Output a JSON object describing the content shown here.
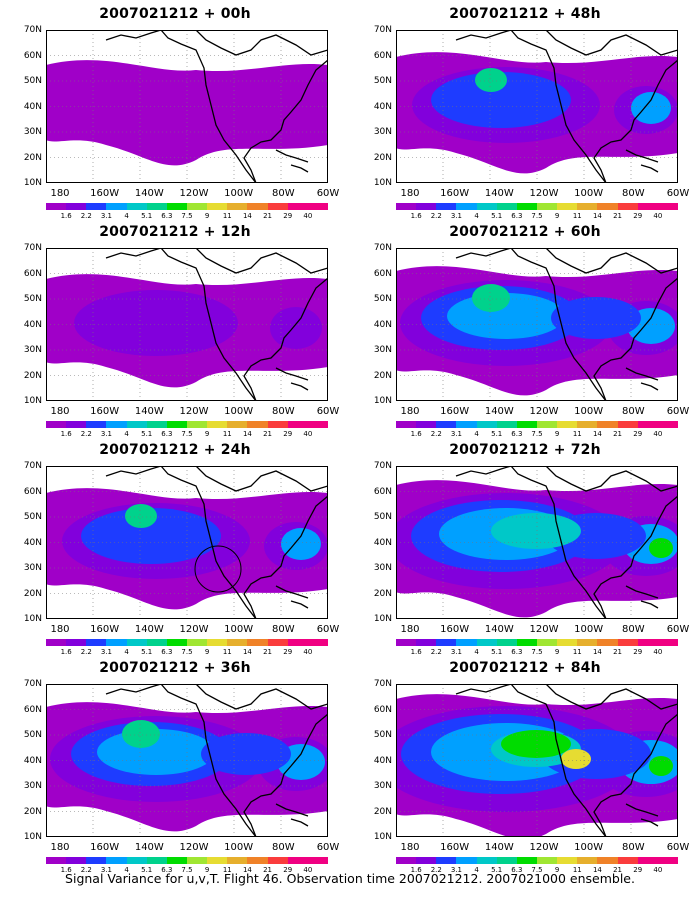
{
  "colors": [
    "#a000c8",
    "#8200dc",
    "#1e3cff",
    "#00a0ff",
    "#00c8c8",
    "#00d28c",
    "#00dc00",
    "#a0e632",
    "#e6dc32",
    "#e6af2d",
    "#f08228",
    "#fa3c3c",
    "#f00082"
  ],
  "colorbar_labels": [
    "1.6",
    "2.2",
    "3.1",
    "4",
    "5.1",
    "6.3",
    "7.5",
    "9",
    "11",
    "14",
    "21",
    "29",
    "40"
  ],
  "y_labels": [
    "70N",
    "60N",
    "50N",
    "40N",
    "30N",
    "20N",
    "10N"
  ],
  "x_labels": [
    "180",
    "160W",
    "140W",
    "120W",
    "100W",
    "80W",
    "60W"
  ],
  "panels": [
    {
      "title": "2007021212 + 00h",
      "level": 0,
      "circle": false
    },
    {
      "title": "2007021212 + 48h",
      "level": 2,
      "circle": false
    },
    {
      "title": "2007021212 + 12h",
      "level": 1,
      "circle": false
    },
    {
      "title": "2007021212 + 60h",
      "level": 3,
      "circle": false
    },
    {
      "title": "2007021212 + 24h",
      "level": 2,
      "circle": true
    },
    {
      "title": "2007021212 + 72h",
      "level": 4,
      "circle": false
    },
    {
      "title": "2007021212 + 36h",
      "level": 3,
      "circle": false
    },
    {
      "title": "2007021212 + 84h",
      "level": 5,
      "circle": false
    }
  ],
  "footer": "Signal Variance for u,v,T. Flight 46. Observation time 2007021212. 2007021000 ensemble."
}
